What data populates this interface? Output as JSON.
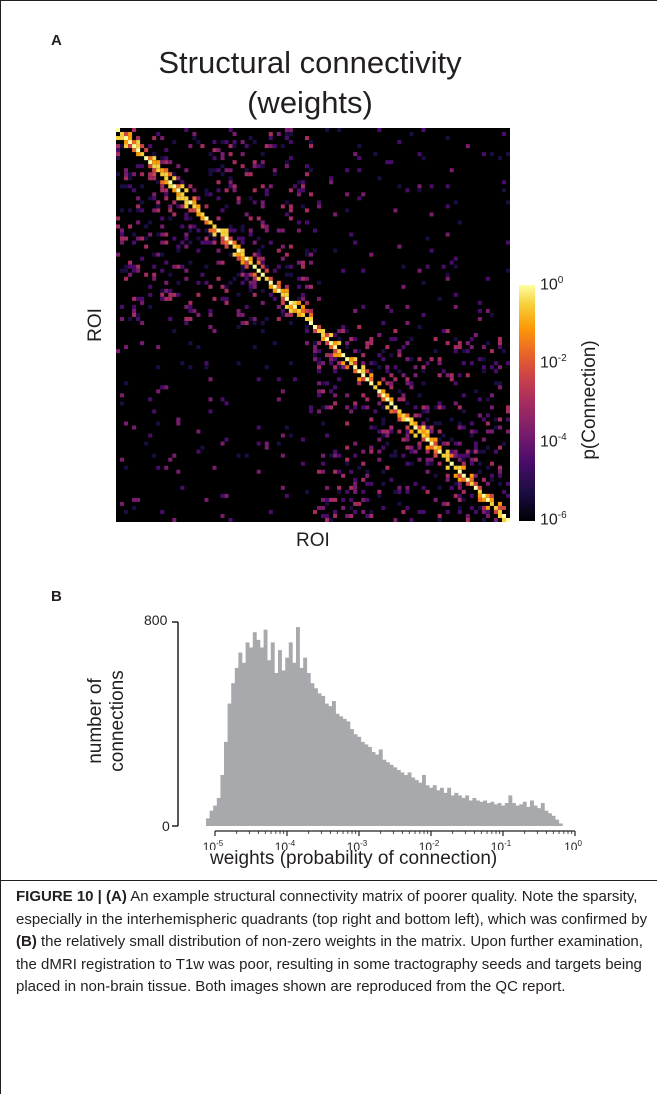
{
  "panel_a": {
    "letter": "A",
    "title_line1": "Structural connectivity",
    "title_line2": "(weights)",
    "y_axis_label": "ROI",
    "x_axis_label": "ROI",
    "colorbar_label": "p(Connection)",
    "colorbar_ticks": [
      {
        "base": "10",
        "exp": "0"
      },
      {
        "base": "10",
        "exp": "-2"
      },
      {
        "base": "10",
        "exp": "-4"
      },
      {
        "base": "10",
        "exp": "-6"
      }
    ],
    "colormap": "magma",
    "colors": {
      "background": "#000000",
      "high": "#fcffa4",
      "mid": "#ed6925",
      "low": "#4a0c6b"
    }
  },
  "panel_b": {
    "letter": "B",
    "y_axis_label_line1": "number of",
    "y_axis_label_line2": "connections",
    "x_axis_label": "weights (probability of connection)",
    "bar_color": "#a7a9ac"
  },
  "chart_data": {
    "type": "bar",
    "title": "",
    "xlabel": "weights (probability of connection)",
    "ylabel": "number of connections",
    "x_scale": "log",
    "xlim": [
      5e-06,
      1
    ],
    "ylim": [
      0,
      800
    ],
    "y_ticks": [
      "0",
      "800"
    ],
    "x_ticks": [
      {
        "base": "10",
        "exp": "-5"
      },
      {
        "base": "10",
        "exp": "-4"
      },
      {
        "base": "10",
        "exp": "-3"
      },
      {
        "base": "10",
        "exp": "-2"
      },
      {
        "base": "10",
        "exp": "-1"
      },
      {
        "base": "10",
        "exp": "0"
      }
    ],
    "x": [
      -5.1,
      -5.05,
      -5,
      -4.95,
      -4.9,
      -4.85,
      -4.8,
      -4.75,
      -4.7,
      -4.65,
      -4.6,
      -4.55,
      -4.5,
      -4.45,
      -4.4,
      -4.35,
      -4.3,
      -4.25,
      -4.2,
      -4.15,
      -4.1,
      -4.05,
      -4,
      -3.95,
      -3.9,
      -3.85,
      -3.8,
      -3.75,
      -3.7,
      -3.65,
      -3.6,
      -3.55,
      -3.5,
      -3.45,
      -3.4,
      -3.35,
      -3.3,
      -3.25,
      -3.2,
      -3.15,
      -3.1,
      -3.05,
      -3,
      -2.95,
      -2.9,
      -2.85,
      -2.8,
      -2.75,
      -2.7,
      -2.65,
      -2.6,
      -2.55,
      -2.5,
      -2.45,
      -2.4,
      -2.35,
      -2.3,
      -2.25,
      -2.2,
      -2.15,
      -2.1,
      -2.05,
      -2,
      -1.95,
      -1.9,
      -1.85,
      -1.8,
      -1.75,
      -1.7,
      -1.65,
      -1.6,
      -1.55,
      -1.5,
      -1.45,
      -1.4,
      -1.35,
      -1.3,
      -1.25,
      -1.2,
      -1.15,
      -1.1,
      -1.05,
      -1,
      -0.95,
      -0.9,
      -0.85,
      -0.8,
      -0.75,
      -0.7,
      -0.65,
      -0.6,
      -0.55,
      -0.5,
      -0.45,
      -0.4,
      -0.35,
      -0.3,
      -0.25,
      -0.2
    ],
    "x_note": "bin centers as log10(weight)",
    "values": [
      30,
      60,
      80,
      110,
      200,
      330,
      480,
      560,
      620,
      680,
      640,
      720,
      700,
      760,
      730,
      700,
      770,
      650,
      720,
      600,
      690,
      610,
      660,
      720,
      640,
      780,
      620,
      660,
      600,
      560,
      540,
      520,
      510,
      480,
      470,
      490,
      440,
      430,
      420,
      410,
      380,
      360,
      350,
      330,
      320,
      310,
      290,
      280,
      300,
      260,
      250,
      240,
      230,
      220,
      210,
      200,
      210,
      190,
      180,
      170,
      200,
      160,
      150,
      160,
      140,
      150,
      130,
      150,
      120,
      130,
      120,
      110,
      120,
      100,
      110,
      100,
      95,
      100,
      90,
      95,
      85,
      90,
      80,
      90,
      120,
      90,
      80,
      85,
      95,
      75,
      100,
      80,
      70,
      90,
      60,
      50,
      40,
      25,
      10
    ]
  },
  "caption": {
    "label": "FIGURE 10 | (A)",
    "text1": " An example structural connectivity matrix of poorer quality. Note the sparsity, especially in the interhemispheric quadrants (top right and bottom left), which was confirmed by ",
    "ref_b": "(B)",
    "text2": " the relatively small distribution of non-zero weights in the matrix. Upon further examination, the dMRI registration to T1w was poor, resulting in some tractography seeds and targets being placed in non-brain tissue. Both images shown are reproduced from the QC report."
  }
}
